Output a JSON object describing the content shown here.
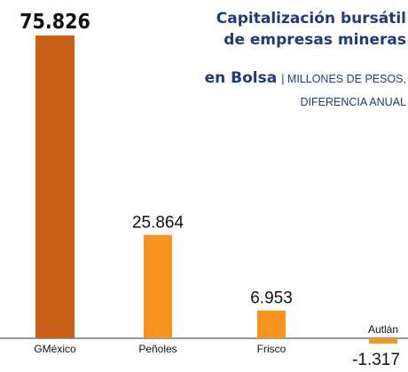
{
  "chart_data": {
    "type": "bar",
    "title": [
      "Capitalización bursátil",
      "de empresas mineras",
      "en Bolsa"
    ],
    "subtitle": [
      "| MILLONES DE PESOS,",
      "DIFERENCIA ANUAL"
    ],
    "categories": [
      "GMéxico",
      "Peñoles",
      "Frisco",
      "Autlán"
    ],
    "values": [
      75826,
      25864,
      6953,
      -1317
    ],
    "value_labels": [
      "75.826",
      "25.864",
      "6.953",
      "-1.317"
    ],
    "colors": [
      "#c8601a",
      "#f7941d",
      "#f7941d",
      "#f7941d"
    ]
  }
}
